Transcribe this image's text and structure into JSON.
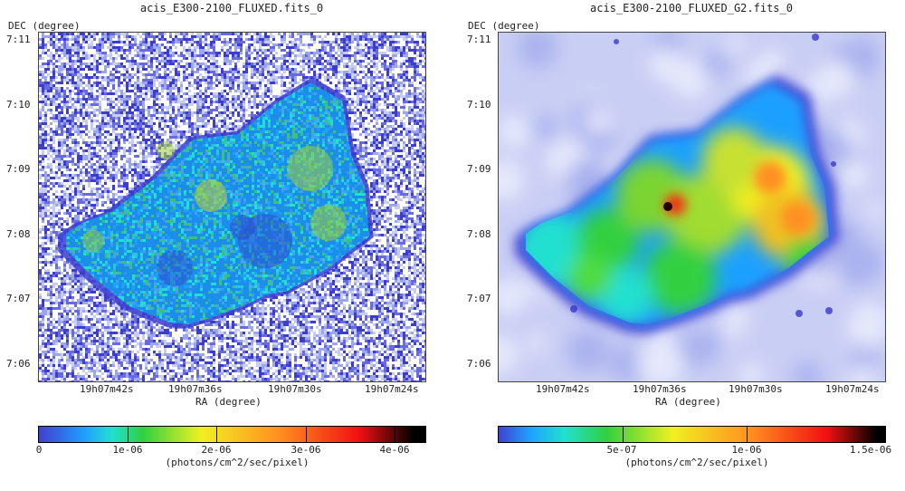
{
  "panels": [
    {
      "title": "acis_E300-2100_FLUXED.fits_0",
      "y_axis_label": "DEC (degree)",
      "x_axis_label": "RA (degree)",
      "y_ticks": [
        "7:11",
        "7:10",
        "7:09",
        "7:08",
        "7:07",
        "7:06"
      ],
      "x_ticks": [
        "19h07m42s",
        "19h07m36s",
        "19h07m30s",
        "19h07m24s"
      ],
      "colorbar_ticks": [
        "0",
        "1e-06",
        "2e-06",
        "3e-06",
        "4e-06"
      ],
      "colorbar_unit": "(photons/cm^2/sec/pixel)",
      "style": "noisy"
    },
    {
      "title": "acis_E300-2100_FLUXED_G2.fits_0",
      "y_axis_label": "DEC (degree)",
      "x_axis_label": "RA (degree)",
      "y_ticks": [
        "7:11",
        "7:10",
        "7:09",
        "7:08",
        "7:07",
        "7:06"
      ],
      "x_ticks": [
        "19h07m42s",
        "19h07m36s",
        "19h07m30s",
        "19h07m24s"
      ],
      "colorbar_ticks": [
        "5e-07",
        "1e-06",
        "1.5e-06"
      ],
      "colorbar_unit": "(photons/cm^2/sec/pixel)",
      "style": "smoothed"
    }
  ],
  "colors": {
    "cmap": [
      "#ffffff",
      "#4040d0",
      "#1fa0ff",
      "#20e0d0",
      "#30d040",
      "#f0f020",
      "#ff9020",
      "#f01010",
      "#000000"
    ]
  }
}
